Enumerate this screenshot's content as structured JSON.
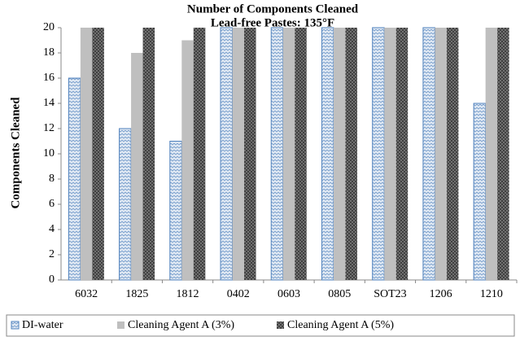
{
  "chart_data": {
    "type": "bar",
    "title": "Number of Components Cleaned",
    "subtitle": "Lead-free Pastes: 135°F",
    "y_label": "Components Cleaned",
    "categories": [
      "6032",
      "1825",
      "1812",
      "0402",
      "0603",
      "0805",
      "SOT23",
      "1206",
      "1210"
    ],
    "series": [
      {
        "name": "DI-water",
        "color": "#4f81bd",
        "values": [
          16,
          12,
          11,
          20,
          20,
          20,
          20,
          20,
          14
        ]
      },
      {
        "name": "Cleaning Agent A (3%)",
        "color": "#bfbfbf",
        "values": [
          20,
          18,
          19,
          20,
          20,
          20,
          20,
          20,
          20
        ]
      },
      {
        "name": "Cleaning Agent A (5%)",
        "color": "#404040",
        "values": [
          20,
          20,
          20,
          20,
          20,
          20,
          20,
          20,
          20
        ]
      }
    ],
    "ylim": [
      0,
      20
    ],
    "yticks": [
      0,
      2,
      4,
      6,
      8,
      10,
      12,
      14,
      16,
      18,
      20
    ],
    "legend": "bottom"
  }
}
